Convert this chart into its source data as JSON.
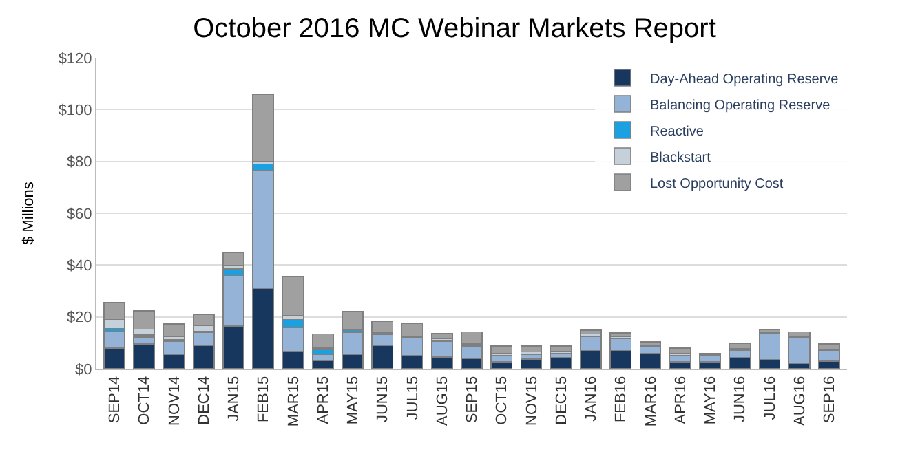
{
  "chart_data": {
    "type": "bar",
    "stacked": true,
    "title": "October 2016 MC Webinar Markets Report",
    "ylabel": "$ Millions",
    "categories": [
      "SEP14",
      "OCT14",
      "NOV14",
      "DEC14",
      "JAN15",
      "FEB15",
      "MAR15",
      "APR15",
      "MAY15",
      "JUN15",
      "JUL15",
      "AUG15",
      "SEP15",
      "OCT15",
      "NOV15",
      "DEC15",
      "JAN16",
      "FEB16",
      "MAR16",
      "APR16",
      "MAY16",
      "JUN16",
      "JUL16",
      "AUG16",
      "SEP16"
    ],
    "series": [
      {
        "name": "Day-Ahead Operating Reserve",
        "color": "#17375e",
        "values": [
          8,
          9.5,
          5.5,
          9,
          16.5,
          31,
          6.8,
          3.2,
          5.6,
          9,
          5,
          4.5,
          3.8,
          2.7,
          3.7,
          4.3,
          7,
          7,
          6,
          2.7,
          2.7,
          4.3,
          3.5,
          2.1,
          2.9
        ]
      },
      {
        "name": "Balancing Operating Reserve",
        "color": "#95b3d7",
        "values": [
          6.5,
          2.7,
          5.2,
          5,
          19.5,
          45.5,
          9.2,
          2.3,
          8.4,
          4.2,
          7,
          6.2,
          5,
          2.2,
          1.9,
          1.5,
          5.4,
          4.7,
          2.7,
          2.3,
          2.2,
          2.7,
          10.1,
          9.7,
          4.1
        ]
      },
      {
        "name": "Reactive",
        "color": "#1ba1e2",
        "values": [
          1,
          0.8,
          0.5,
          0.5,
          2.5,
          2.5,
          3,
          2,
          0.7,
          0.5,
          0.2,
          0.2,
          0.8,
          0.1,
          0.1,
          0.1,
          0.1,
          0.1,
          0.2,
          0.1,
          0.1,
          0.2,
          0.1,
          0.1,
          0.1
        ]
      },
      {
        "name": "Blackstart",
        "color": "#c5d0da",
        "values": [
          3.5,
          2.3,
          1.3,
          2.2,
          1.5,
          1,
          1.5,
          0.5,
          0.3,
          0.3,
          0.3,
          0.6,
          0.3,
          1,
          0.8,
          0.7,
          0.9,
          0.5,
          0.3,
          0.9,
          0.5,
          0.5,
          0.3,
          0.3,
          0.5
        ]
      },
      {
        "name": "Lost Opportunity Cost",
        "color": "#a0a0a0",
        "values": [
          6.5,
          7,
          4.8,
          4.3,
          4.7,
          26,
          15.2,
          5.4,
          7,
          4.4,
          5,
          2,
          4.3,
          2.7,
          2.2,
          2.1,
          1.4,
          1.5,
          1.1,
          2,
          0.3,
          2.2,
          1,
          2,
          1.9
        ]
      }
    ],
    "ylim": [
      0,
      120
    ],
    "yticks": [
      {
        "value": 0,
        "label": "$0"
      },
      {
        "value": 20,
        "label": "$20"
      },
      {
        "value": 40,
        "label": "$40"
      },
      {
        "value": 60,
        "label": "$60"
      },
      {
        "value": 80,
        "label": "$80"
      },
      {
        "value": 100,
        "label": "$100"
      },
      {
        "value": 120,
        "label": "$120"
      }
    ],
    "grid": "y",
    "legend": "top right"
  }
}
